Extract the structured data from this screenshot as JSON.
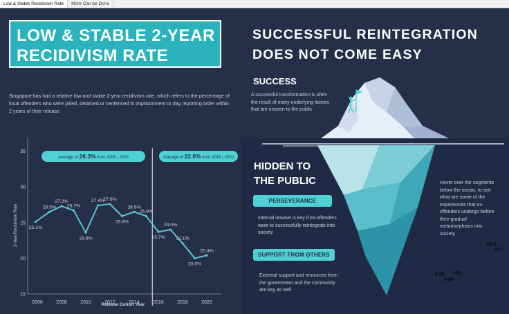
{
  "tabs": [
    "Low & Stable Recidivism Rate",
    "More Can be Done"
  ],
  "left": {
    "title_line1": "LOW & STABLE 2-YEAR",
    "title_line2": "RECIDIVISM RATE",
    "intro": "Singapore has had a relative low and stable 2-year recidivism rate, which refers to the percentage of local offenders who were jailed, detained or sentenced to imprisonment or day reporting order within 2 years of their release",
    "pill1": {
      "prefix": "Average of ",
      "value": "26.3%",
      "suffix": " from 2006 - 2015"
    },
    "pill2": {
      "prefix": "Average of ",
      "value": "22.0%",
      "suffix": " from 2016 - 2020"
    }
  },
  "chart_data": {
    "type": "line",
    "xlabel": "Release Cohort Year",
    "ylabel": "2-Year Recidivism Rate",
    "ylim": [
      15,
      37
    ],
    "xlim": [
      2005.2,
      2021.2
    ],
    "y_ticks": [
      "15",
      "20",
      "25",
      "30",
      "35"
    ],
    "x_ticks": [
      "2006",
      "2008",
      "2010",
      "2012",
      "2014",
      "2016",
      "2018",
      "2020"
    ],
    "line_color": "#5bc6d6",
    "divider_at": 2015.5,
    "points": [
      {
        "x": 2005.85,
        "y": 25.1,
        "label": "25.1%"
      },
      {
        "x": 2007.0,
        "y": 26.5,
        "label": "26.5%"
      },
      {
        "x": 2008.0,
        "y": 27.3,
        "label": "27.3%"
      },
      {
        "x": 2009.0,
        "y": 26.7,
        "label": "26.7%"
      },
      {
        "x": 2010.0,
        "y": 23.6,
        "label": "23.6%"
      },
      {
        "x": 2011.0,
        "y": 27.4,
        "label": "27.4%"
      },
      {
        "x": 2012.0,
        "y": 27.6,
        "label": "27.6%"
      },
      {
        "x": 2013.0,
        "y": 25.9,
        "label": "25.9%"
      },
      {
        "x": 2014.0,
        "y": 26.5,
        "label": "26.5%"
      },
      {
        "x": 2015.0,
        "y": 25.9,
        "label": "25.9%"
      },
      {
        "x": 2016.0,
        "y": 23.7,
        "label": "23.7%"
      },
      {
        "x": 2017.0,
        "y": 24.0,
        "label": "24.0%"
      },
      {
        "x": 2018.0,
        "y": 22.1,
        "label": "22.1%"
      },
      {
        "x": 2019.0,
        "y": 20.0,
        "label": "20.0%"
      },
      {
        "x": 2020.0,
        "y": 20.4,
        "label": "20.4%"
      }
    ]
  },
  "right": {
    "heading1": "SUCCESSFUL REINTEGRATION",
    "heading2": "DOES NOT COME EASY",
    "success_title": "SUCCESS",
    "success_text": "A successful transformation is often the result of many underlying factors that are unseen to the public",
    "hidden1": "HIDDEN TO",
    "hidden2": "THE PUBLIC",
    "tag1": "PERSEVERANCE",
    "tag1_text": "Internal resolve is key if ex-offenders were to successfully reintegrate into society",
    "tag2": "SUPPORT FROM OTHERS",
    "tag2_text": "External support and resources from the government and the community are key as well",
    "hover_text": "Hover over the segments below the ocean, to see what are some of the experiences that ex-offenders undergo before their gradual metamorphosis into society"
  }
}
